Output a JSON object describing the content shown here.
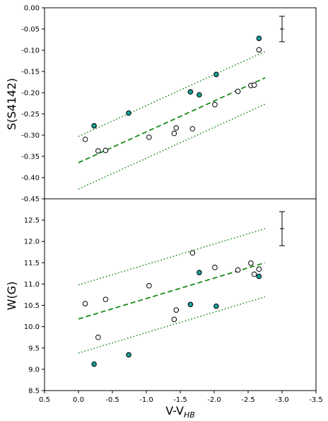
{
  "chart_data": [
    {
      "type": "scatter",
      "ylabel": "S(S4142)",
      "ylim": [
        -0.45,
        0.0
      ],
      "yticks": [
        "0.00",
        "-0.05",
        "-0.10",
        "-0.15",
        "-0.20",
        "-0.25",
        "-0.30",
        "-0.35",
        "-0.40",
        "-0.45"
      ],
      "ytick_values": [
        0.0,
        -0.05,
        -0.1,
        -0.15,
        -0.2,
        -0.25,
        -0.3,
        -0.35,
        -0.4,
        -0.45
      ],
      "open_points": [
        {
          "x": -0.1,
          "y": -0.31
        },
        {
          "x": -0.29,
          "y": -0.337
        },
        {
          "x": -0.4,
          "y": -0.336
        },
        {
          "x": -1.04,
          "y": -0.305
        },
        {
          "x": -1.41,
          "y": -0.296
        },
        {
          "x": -1.44,
          "y": -0.283
        },
        {
          "x": -1.68,
          "y": -0.285
        },
        {
          "x": -2.01,
          "y": -0.228
        },
        {
          "x": -2.35,
          "y": -0.197
        },
        {
          "x": -2.54,
          "y": -0.183
        },
        {
          "x": -2.59,
          "y": -0.182
        },
        {
          "x": -2.66,
          "y": -0.099
        }
      ],
      "filled_points": [
        {
          "x": -0.23,
          "y": -0.278
        },
        {
          "x": -0.74,
          "y": -0.248
        },
        {
          "x": -1.65,
          "y": -0.198
        },
        {
          "x": -1.78,
          "y": -0.205
        },
        {
          "x": -2.03,
          "y": -0.157
        },
        {
          "x": -2.66,
          "y": -0.072
        }
      ],
      "fit_line": [
        {
          "x": 0.0,
          "y": -0.365
        },
        {
          "x": -2.75,
          "y": -0.165
        }
      ],
      "upper_line": [
        {
          "x": 0.0,
          "y": -0.303
        },
        {
          "x": -2.75,
          "y": -0.103
        }
      ],
      "lower_line": [
        {
          "x": 0.0,
          "y": -0.427
        },
        {
          "x": -2.75,
          "y": -0.227
        }
      ],
      "error_bar": {
        "x": -3.0,
        "y": -0.05,
        "err": 0.03
      }
    },
    {
      "type": "scatter",
      "ylabel": "W(G)",
      "xlabel_main": "V-V",
      "xlabel_sub": "HB",
      "ylim": [
        8.5,
        13.0
      ],
      "xlim": [
        0.5,
        -3.5
      ],
      "yticks": [
        "8.5",
        "9.0",
        "9.5",
        "10.0",
        "10.5",
        "11.0",
        "11.5",
        "12.0",
        "12.5"
      ],
      "ytick_values": [
        8.5,
        9.0,
        9.5,
        10.0,
        10.5,
        11.0,
        11.5,
        12.0,
        12.5
      ],
      "xticks": [
        "0.5",
        "0.0",
        "-0.5",
        "-1.0",
        "-1.5",
        "-2.0",
        "-2.5",
        "-3.0",
        "-3.5"
      ],
      "xtick_values": [
        0.5,
        0.0,
        -0.5,
        -1.0,
        -1.5,
        -2.0,
        -2.5,
        -3.0,
        -3.5
      ],
      "open_points": [
        {
          "x": -0.1,
          "y": 10.54
        },
        {
          "x": -0.29,
          "y": 9.75
        },
        {
          "x": -0.4,
          "y": 10.64
        },
        {
          "x": -1.04,
          "y": 10.96
        },
        {
          "x": -1.41,
          "y": 10.17
        },
        {
          "x": -1.44,
          "y": 10.39
        },
        {
          "x": -1.68,
          "y": 11.73
        },
        {
          "x": -2.01,
          "y": 11.39
        },
        {
          "x": -2.35,
          "y": 11.33
        },
        {
          "x": -2.54,
          "y": 11.49
        },
        {
          "x": -2.59,
          "y": 11.23
        },
        {
          "x": -2.66,
          "y": 11.35
        }
      ],
      "filled_points": [
        {
          "x": -0.23,
          "y": 9.12
        },
        {
          "x": -0.74,
          "y": 9.34
        },
        {
          "x": -1.65,
          "y": 10.52
        },
        {
          "x": -1.78,
          "y": 11.27
        },
        {
          "x": -2.03,
          "y": 10.48
        },
        {
          "x": -2.66,
          "y": 11.18
        }
      ],
      "fit_line": [
        {
          "x": 0.0,
          "y": 10.18
        },
        {
          "x": -2.75,
          "y": 11.5
        }
      ],
      "upper_line": [
        {
          "x": 0.0,
          "y": 10.98
        },
        {
          "x": -2.75,
          "y": 12.3
        }
      ],
      "lower_line": [
        {
          "x": 0.0,
          "y": 9.38
        },
        {
          "x": -2.75,
          "y": 10.7
        }
      ],
      "error_bar": {
        "x": -3.0,
        "y": 12.3,
        "err": 0.4
      }
    }
  ],
  "colors": {
    "filled_marker": "#1a9e96",
    "open_marker": "#ffffff",
    "marker_edge": "#000000",
    "fit_line": "#1a8a1a",
    "axis": "#000000"
  }
}
